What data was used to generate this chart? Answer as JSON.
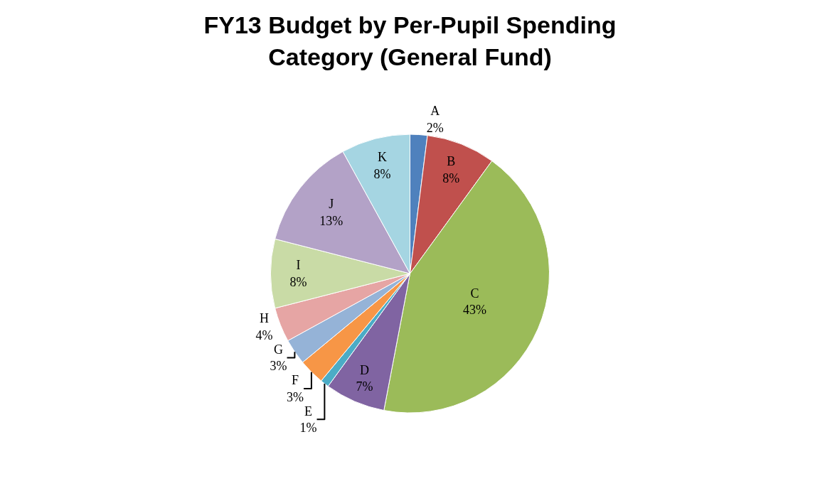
{
  "chart_data": {
    "type": "pie",
    "title": "FY13 Budget by Per-Pupil Spending Category (General Fund)",
    "categories": [
      "A",
      "B",
      "C",
      "D",
      "E",
      "F",
      "G",
      "H",
      "I",
      "J",
      "K"
    ],
    "values": [
      2,
      8,
      43,
      7,
      1,
      3,
      3,
      4,
      8,
      13,
      8
    ],
    "value_labels": [
      "2%",
      "8%",
      "43%",
      "7%",
      "1%",
      "3%",
      "3%",
      "4%",
      "8%",
      "13%",
      "8%"
    ],
    "colors": [
      "#4f81bd",
      "#c0504d",
      "#9bbb59",
      "#8064a2",
      "#4bacc6",
      "#f79646",
      "#95b3d7",
      "#e6a5a4",
      "#c9dba6",
      "#b3a2c7",
      "#a5d5e2"
    ],
    "legend": false
  }
}
